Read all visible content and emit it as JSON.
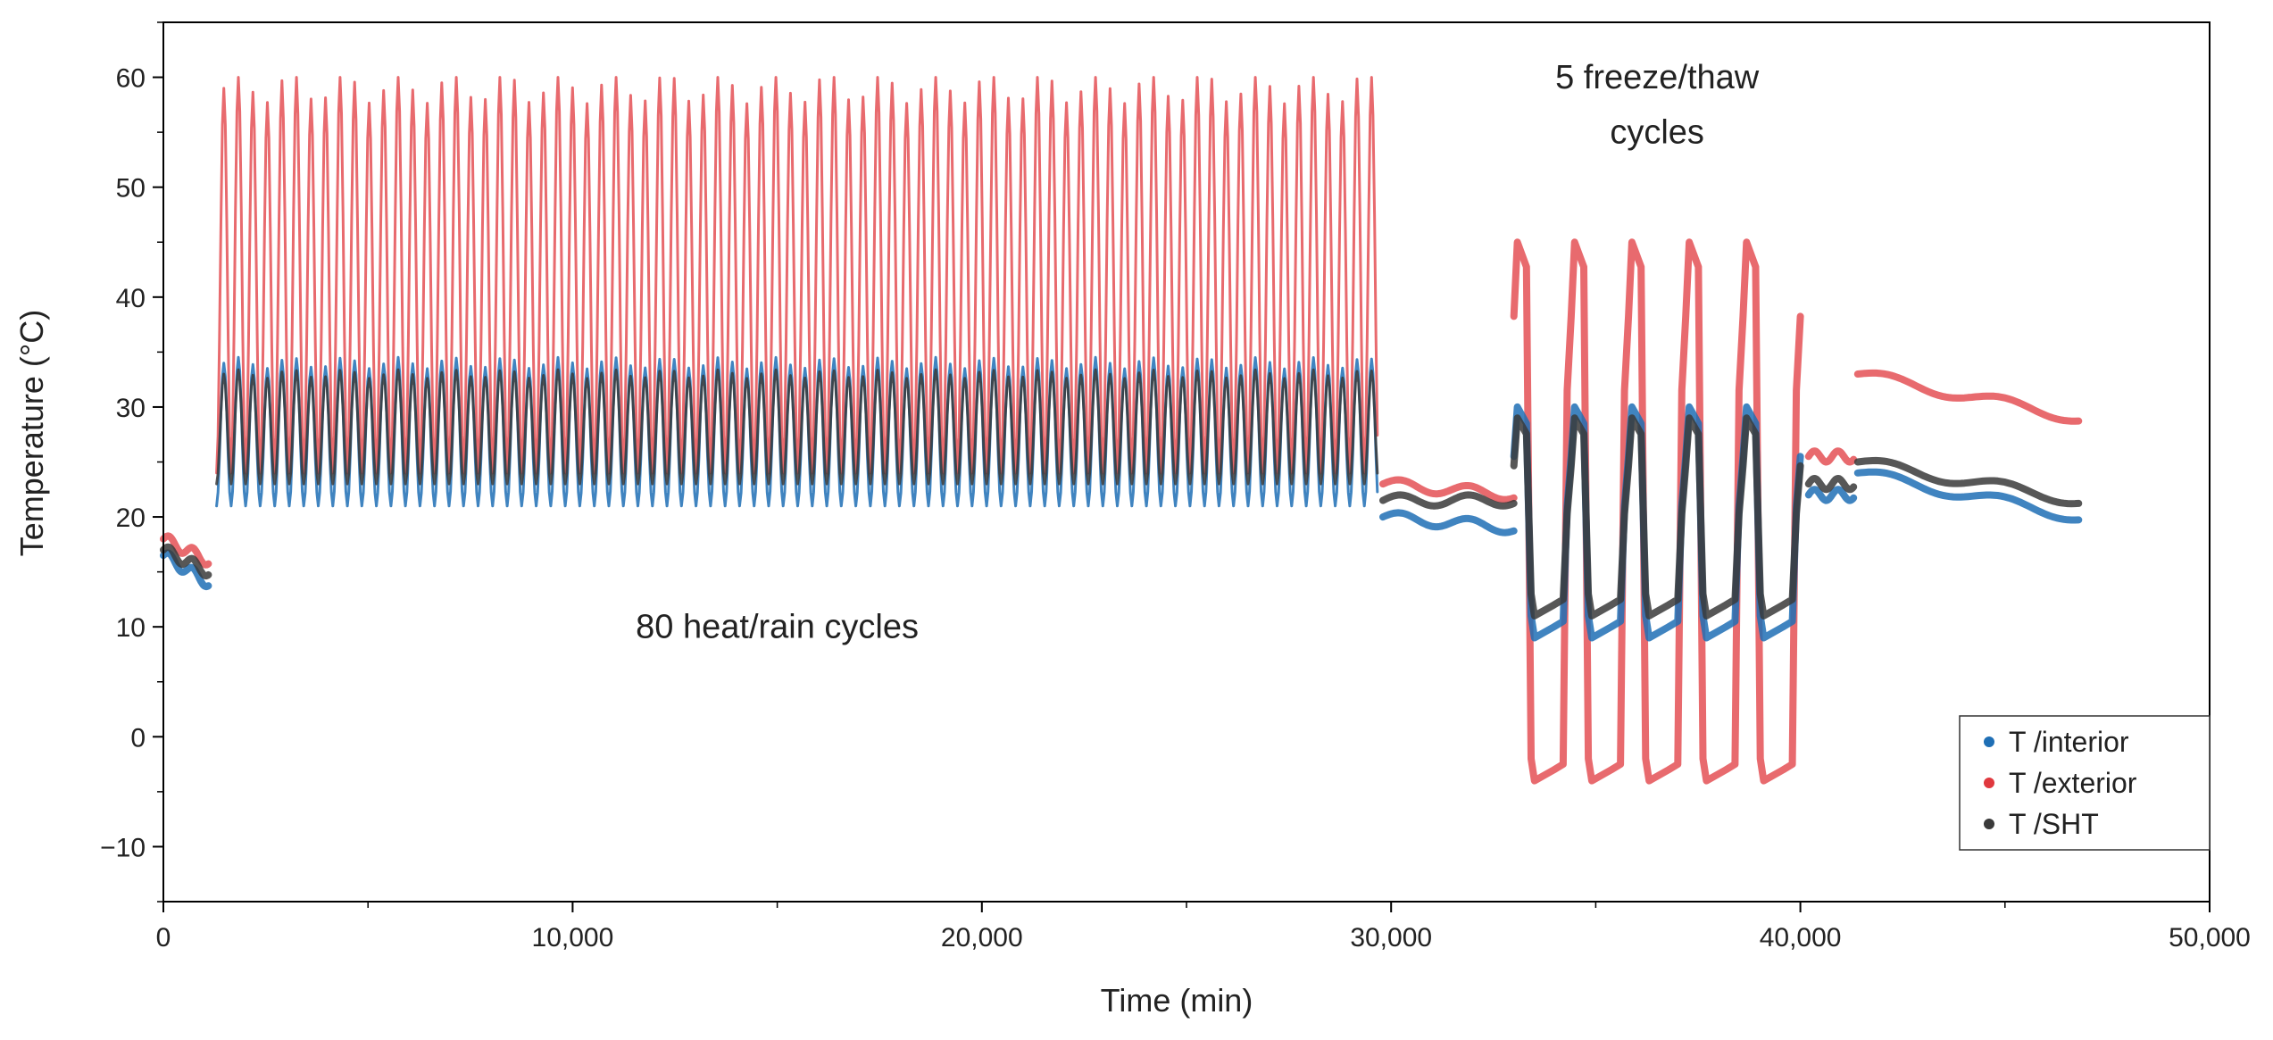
{
  "chart_data": {
    "type": "scatter",
    "title": "",
    "xlabel": "Time (min)",
    "ylabel": "Temperature (°C)",
    "xlim": [
      0,
      50000
    ],
    "ylim": [
      -15,
      65
    ],
    "xticks": [
      0,
      10000,
      20000,
      30000,
      40000,
      50000
    ],
    "xtick_labels": [
      "0",
      "10,000",
      "20,000",
      "30,000",
      "40,000",
      "50,000"
    ],
    "yticks": [
      -10,
      0,
      10,
      20,
      30,
      40,
      50,
      60
    ],
    "ytick_labels": [
      "−10",
      "0",
      "10",
      "20",
      "30",
      "40",
      "50",
      "60"
    ],
    "annotations": [
      {
        "text": "80 heat/rain cycles",
        "x": 15000,
        "y": 9
      },
      {
        "text": "5 freeze/thaw",
        "x": 36500,
        "y": 59
      },
      {
        "text": "cycles",
        "x": 36500,
        "y": 54
      }
    ],
    "legend_position": "bottom-right",
    "colors": {
      "interior": "#1f6fb5",
      "exterior": "#e0383e",
      "sht": "#3a3a3a"
    },
    "series": [
      {
        "name": "T /interior",
        "color": "#1f6fb5",
        "segments": [
          {
            "x": [
              0,
              1100
            ],
            "y": [
              16.5,
              14
            ],
            "type": "flat"
          },
          {
            "x": [
              1300,
              29700
            ],
            "type": "osc",
            "cycles": 80,
            "min": 21,
            "max": 34
          },
          {
            "x": [
              29800,
              33000
            ],
            "y": [
              20,
              19
            ],
            "type": "flat"
          },
          {
            "x": [
              33000,
              40000
            ],
            "type": "freeze",
            "high": 30,
            "low": 9
          },
          {
            "x": [
              40200,
              41300
            ],
            "y": [
              22,
              22
            ],
            "type": "flat"
          },
          {
            "x": [
              41400,
              46800
            ],
            "y": [
              24,
              20
            ],
            "type": "flat"
          }
        ]
      },
      {
        "name": "T /exterior",
        "color": "#e0383e",
        "segments": [
          {
            "x": [
              0,
              1100
            ],
            "y": [
              18,
              16
            ],
            "type": "flat"
          },
          {
            "x": [
              1300,
              29700
            ],
            "type": "osc",
            "cycles": 80,
            "min": 24,
            "max": 59
          },
          {
            "x": [
              29800,
              33000
            ],
            "y": [
              23,
              22
            ],
            "type": "flat"
          },
          {
            "x": [
              33000,
              40000
            ],
            "type": "freeze",
            "high": 45,
            "low": -4
          },
          {
            "x": [
              40200,
              41300
            ],
            "y": [
              25.5,
              25.5
            ],
            "type": "flat"
          },
          {
            "x": [
              41400,
              46800
            ],
            "y": [
              33,
              29
            ],
            "type": "flat"
          }
        ]
      },
      {
        "name": "T /SHT",
        "color": "#3a3a3a",
        "segments": [
          {
            "x": [
              0,
              1100
            ],
            "y": [
              17,
              15
            ],
            "type": "flat"
          },
          {
            "x": [
              1300,
              29700
            ],
            "type": "osc",
            "cycles": 80,
            "min": 23,
            "max": 33
          },
          {
            "x": [
              29800,
              33000
            ],
            "y": [
              21.5,
              21.5
            ],
            "type": "flat"
          },
          {
            "x": [
              33000,
              40000
            ],
            "type": "freeze",
            "high": 29,
            "low": 11
          },
          {
            "x": [
              40200,
              41300
            ],
            "y": [
              23,
              23
            ],
            "type": "flat"
          },
          {
            "x": [
              41400,
              46800
            ],
            "y": [
              25,
              21.5
            ],
            "type": "flat"
          }
        ]
      }
    ]
  }
}
